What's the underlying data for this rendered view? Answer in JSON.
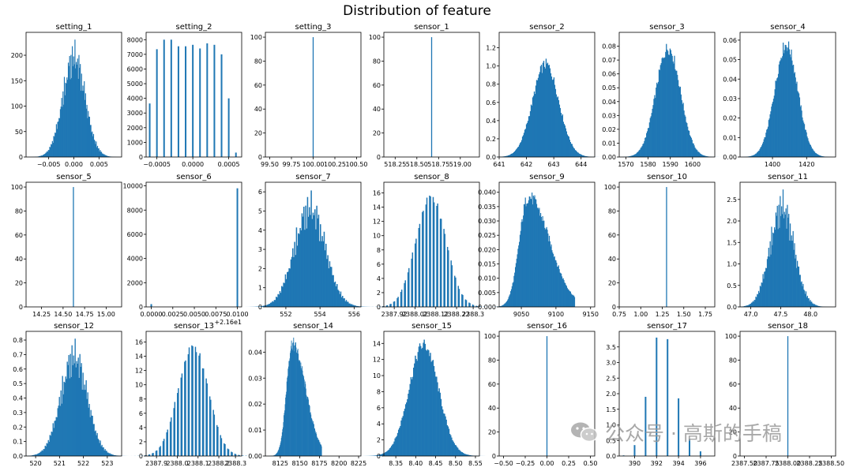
{
  "figure": {
    "title": "Distribution of feature"
  },
  "watermark": {
    "text": "公众号 · 高斯的手稿"
  },
  "colors": {
    "bar": "#1f77b4",
    "axis": "#000000"
  },
  "chart_data": [
    {
      "name": "setting_1",
      "type": "hist",
      "shape": "spiky-normal",
      "center": 0.0,
      "sd": 0.0022,
      "xlim": [
        -0.0095,
        0.0095
      ],
      "ylim": [
        0,
        245
      ],
      "xticks": [
        -0.005,
        0.0,
        0.005
      ],
      "xtick_labels": [
        "−0.005",
        "0.000",
        "0.005"
      ],
      "yticks": [
        0,
        50,
        100,
        150,
        200
      ],
      "peak": 228
    },
    {
      "name": "setting_2",
      "type": "hist",
      "shape": "discrete",
      "xlim": [
        -0.00065,
        0.00068
      ],
      "ylim": [
        0,
        8500
      ],
      "xticks": [
        -0.0005,
        0.0,
        0.0005
      ],
      "xtick_labels": [
        "−0.0005",
        "0.0000",
        "0.0005"
      ],
      "yticks": [
        0,
        1000,
        2000,
        3000,
        4000,
        5000,
        6000,
        7000,
        8000
      ],
      "bars": [
        [
          -0.0006,
          3650
        ],
        [
          -0.0005,
          7350
        ],
        [
          -0.0004,
          8000
        ],
        [
          -0.0003,
          8000
        ],
        [
          -0.0002,
          7550
        ],
        [
          -0.0001,
          7550
        ],
        [
          0.0,
          7650
        ],
        [
          0.0001,
          7400
        ],
        [
          0.0002,
          7750
        ],
        [
          0.0003,
          7650
        ],
        [
          0.0004,
          7000
        ],
        [
          0.0005,
          4000
        ],
        [
          0.0006,
          300
        ]
      ]
    },
    {
      "name": "setting_3",
      "type": "hist",
      "shape": "single",
      "xlim": [
        99.45,
        100.55
      ],
      "ylim": [
        0,
        104
      ],
      "xticks": [
        99.5,
        99.75,
        100.0,
        100.25,
        100.5
      ],
      "xtick_labels": [
        "99.50",
        "99.75",
        "100.00",
        "100.25",
        "100.50"
      ],
      "yticks": [
        0,
        20,
        40,
        60,
        80,
        100
      ],
      "bars": [
        [
          100.0,
          100
        ]
      ]
    },
    {
      "name": "sensor_1",
      "type": "hist",
      "shape": "single",
      "xlim": [
        518.12,
        519.22
      ],
      "ylim": [
        0,
        104
      ],
      "xticks": [
        518.25,
        518.5,
        518.75,
        519.0
      ],
      "xtick_labels": [
        "518.25",
        "518.50",
        "518.75",
        "519.00"
      ],
      "yticks": [
        0,
        20,
        40,
        60,
        80,
        100
      ],
      "bars": [
        [
          518.67,
          100
        ]
      ]
    },
    {
      "name": "sensor_2",
      "type": "hist",
      "shape": "normal",
      "center": 642.7,
      "sd": 0.48,
      "xlim": [
        641.0,
        644.5
      ],
      "ylim": [
        0,
        1.37
      ],
      "xticks": [
        641,
        642,
        643,
        644
      ],
      "xtick_labels": [
        "641",
        "642",
        "643",
        "644"
      ],
      "yticks": [
        0,
        0.2,
        0.4,
        0.6,
        0.8,
        1.0,
        1.2
      ],
      "ytick_labels": [
        "0.0",
        "0.2",
        "0.4",
        "0.6",
        "0.8",
        "1.0",
        "1.2"
      ],
      "peak": 1.06
    },
    {
      "name": "sensor_3",
      "type": "hist",
      "shape": "normal",
      "center": 1589.0,
      "sd": 5.5,
      "xlim": [
        1567,
        1610
      ],
      "ylim": [
        0,
        0.09
      ],
      "xticks": [
        1570,
        1580,
        1590,
        1600
      ],
      "xtick_labels": [
        "1570",
        "1580",
        "1590",
        "1600"
      ],
      "yticks": [
        0,
        0.01,
        0.02,
        0.03,
        0.04,
        0.05,
        0.06,
        0.07,
        0.08
      ],
      "ytick_labels": [
        "0.00",
        "0.01",
        "0.02",
        "0.03",
        "0.04",
        "0.05",
        "0.06",
        "0.07",
        "0.08"
      ],
      "peak": 0.082
    },
    {
      "name": "sensor_4",
      "type": "hist",
      "shape": "normal",
      "center": 1408.0,
      "sd": 6.7,
      "xlim": [
        1381,
        1437
      ],
      "ylim": [
        0,
        0.064
      ],
      "xticks": [
        1400,
        1420
      ],
      "xtick_labels": [
        "1400",
        "1420"
      ],
      "yticks": [
        0,
        0.01,
        0.02,
        0.03,
        0.04,
        0.05,
        0.06
      ],
      "ytick_labels": [
        "0.00",
        "0.01",
        "0.02",
        "0.03",
        "0.04",
        "0.05",
        "0.06"
      ],
      "peak": 0.06
    },
    {
      "name": "sensor_5",
      "type": "hist",
      "shape": "single",
      "xlim": [
        14.07,
        15.18
      ],
      "ylim": [
        0,
        104
      ],
      "xticks": [
        14.25,
        14.5,
        14.75,
        15.0
      ],
      "xtick_labels": [
        "14.25",
        "14.50",
        "14.75",
        "15.00"
      ],
      "yticks": [
        0,
        20,
        40,
        60,
        80,
        100
      ],
      "bars": [
        [
          14.62,
          100
        ]
      ]
    },
    {
      "name": "sensor_6",
      "type": "hist",
      "shape": "discrete",
      "xlim": [
        -0.0006,
        0.0105
      ],
      "ylim": [
        0,
        10300
      ],
      "xticks": [
        0.0,
        0.0025,
        0.005,
        0.0075,
        0.01
      ],
      "xtick_labels": [
        "0.0000",
        "0.0025",
        "0.0050",
        "0.0075",
        "0.0100"
      ],
      "offset_label": "+2.16e1",
      "yticks": [
        0,
        2000,
        4000,
        6000,
        8000,
        10000
      ],
      "bars": [
        [
          0.0,
          230
        ],
        [
          0.01,
          9800
        ]
      ]
    },
    {
      "name": "sensor_7",
      "type": "hist",
      "shape": "spiky-normal",
      "center": 553.4,
      "sd": 0.9,
      "xlim": [
        550.8,
        556.4
      ],
      "ylim": [
        0,
        6.5
      ],
      "xticks": [
        552,
        554,
        556
      ],
      "xtick_labels": [
        "552",
        "554",
        "556"
      ],
      "yticks": [
        0,
        1,
        2,
        3,
        4,
        5,
        6
      ],
      "peak": 6.0
    },
    {
      "name": "sensor_8",
      "type": "hist",
      "shape": "comb",
      "center": 2388.096,
      "sd": 0.072,
      "xlim": [
        2387.87,
        2388.33
      ],
      "ylim": [
        0,
        17.5
      ],
      "xticks": [
        2387.92,
        2388.02,
        2388.12,
        2388.22,
        2388.3
      ],
      "xtick_labels": [
        "2387.92",
        "2388.02",
        "2388.12",
        "2388.22",
        "2388.3"
      ],
      "yticks": [
        0,
        2,
        4,
        6,
        8,
        10,
        12,
        14,
        16
      ],
      "peak": 16.3
    },
    {
      "name": "sensor_9",
      "type": "hist",
      "shape": "skew",
      "center": 9060,
      "sd": 16,
      "xlim": [
        9018,
        9156
      ],
      "ylim": [
        0,
        0.0435
      ],
      "xticks": [
        9050,
        9100,
        9150
      ],
      "xtick_labels": [
        "9050",
        "9100",
        "9150"
      ],
      "yticks": [
        0,
        0.005,
        0.01,
        0.015,
        0.02,
        0.025,
        0.03,
        0.035,
        0.04
      ],
      "ytick_labels": [
        "0.000",
        "0.005",
        "0.010",
        "0.015",
        "0.020",
        "0.025",
        "0.030",
        "0.035",
        "0.040"
      ],
      "peak": 0.04
    },
    {
      "name": "sensor_10",
      "type": "hist",
      "shape": "single",
      "xlim": [
        0.75,
        1.86
      ],
      "ylim": [
        0,
        104
      ],
      "xticks": [
        0.75,
        1.0,
        1.25,
        1.5,
        1.75
      ],
      "xtick_labels": [
        "0.75",
        "1.00",
        "1.25",
        "1.50",
        "1.75"
      ],
      "yticks": [
        0,
        20,
        40,
        60,
        80,
        100
      ],
      "bars": [
        [
          1.3,
          100
        ]
      ]
    },
    {
      "name": "sensor_11",
      "type": "hist",
      "shape": "spiky-normal",
      "center": 47.52,
      "sd": 0.2,
      "xlim": [
        46.82,
        48.42
      ],
      "ylim": [
        0,
        2.9
      ],
      "xticks": [
        47.0,
        47.5,
        48.0
      ],
      "xtick_labels": [
        "47.0",
        "47.5",
        "48.0"
      ],
      "yticks": [
        0,
        0.5,
        1.0,
        1.5,
        2.0,
        2.5
      ],
      "ytick_labels": [
        "0.0",
        "0.5",
        "1.0",
        "1.5",
        "2.0",
        "2.5"
      ],
      "peak": 2.7
    },
    {
      "name": "sensor_12",
      "type": "hist",
      "shape": "spiky-normal",
      "center": 521.6,
      "sd": 0.55,
      "xlim": [
        519.6,
        523.6
      ],
      "ylim": [
        0,
        0.86
      ],
      "xticks": [
        520,
        521,
        522,
        523
      ],
      "xtick_labels": [
        "520",
        "521",
        "522",
        "523"
      ],
      "yticks": [
        0,
        0.1,
        0.2,
        0.3,
        0.4,
        0.5,
        0.6,
        0.7,
        0.8
      ],
      "ytick_labels": [
        "0.0",
        "0.1",
        "0.2",
        "0.3",
        "0.4",
        "0.5",
        "0.6",
        "0.7",
        "0.8"
      ],
      "peak": 0.8
    },
    {
      "name": "sensor_13",
      "type": "hist",
      "shape": "comb",
      "center": 2388.096,
      "sd": 0.072,
      "xlim": [
        2387.87,
        2388.33
      ],
      "ylim": [
        0,
        17.5
      ],
      "xticks": [
        2387.92,
        2388.02,
        2388.12,
        2388.22,
        2388.3
      ],
      "xtick_labels": [
        "2387.9",
        "2388.0",
        "2388.1",
        "2388.2",
        "2388.3"
      ],
      "yticks": [
        0,
        2,
        4,
        6,
        8,
        10,
        12,
        14,
        16
      ],
      "peak": 16.2
    },
    {
      "name": "sensor_14",
      "type": "hist",
      "shape": "skew",
      "center": 8140,
      "sd": 9,
      "xlim": [
        8106,
        8228
      ],
      "ylim": [
        0,
        0.048
      ],
      "xticks": [
        8125,
        8150,
        8175,
        8200,
        8225
      ],
      "xtick_labels": [
        "8125",
        "8150",
        "8175",
        "8200",
        "8225"
      ],
      "yticks": [
        0,
        0.01,
        0.02,
        0.03,
        0.04
      ],
      "ytick_labels": [
        "0.00",
        "0.01",
        "0.02",
        "0.03",
        "0.04"
      ],
      "peak": 0.045
    },
    {
      "name": "sensor_15",
      "type": "hist",
      "shape": "normal",
      "center": 8.42,
      "sd": 0.037,
      "xlim": [
        8.32,
        8.56
      ],
      "ylim": [
        0,
        15.5
      ],
      "xticks": [
        8.35,
        8.4,
        8.45,
        8.5,
        8.55
      ],
      "xtick_labels": [
        "8.35",
        "8.40",
        "8.45",
        "8.50",
        "8.55"
      ],
      "yticks": [
        0,
        2,
        4,
        6,
        8,
        10,
        12,
        14
      ],
      "peak": 14.4
    },
    {
      "name": "sensor_16",
      "type": "hist",
      "shape": "single",
      "xlim": [
        -0.55,
        0.55
      ],
      "ylim": [
        0,
        104
      ],
      "xticks": [
        -0.5,
        -0.25,
        0.0,
        0.25,
        0.5
      ],
      "xtick_labels": [
        "−0.50",
        "−0.25",
        "0.00",
        "0.25",
        "0.50"
      ],
      "yticks": [
        0,
        20,
        40,
        60,
        80,
        100
      ],
      "bars": [
        [
          0.0,
          100
        ]
      ]
    },
    {
      "name": "sensor_17",
      "type": "hist",
      "shape": "discrete",
      "xlim": [
        388.6,
        397.3
      ],
      "ylim": [
        0,
        4.0
      ],
      "xticks": [
        390,
        392,
        394,
        396
      ],
      "xtick_labels": [
        "390",
        "392",
        "394",
        "396"
      ],
      "yticks": [
        0,
        0.5,
        1.0,
        1.5,
        2.0,
        2.5,
        3.0,
        3.5
      ],
      "ytick_labels": [
        "0.0",
        "0.5",
        "1.0",
        "1.5",
        "2.0",
        "2.5",
        "3.0",
        "3.5"
      ],
      "bars": [
        [
          389,
          0.02
        ],
        [
          390,
          0.35
        ],
        [
          391,
          1.9
        ],
        [
          392,
          3.8
        ],
        [
          393,
          3.75
        ],
        [
          394,
          1.85
        ],
        [
          395,
          0.55
        ],
        [
          396,
          0.15
        ]
      ]
    },
    {
      "name": "sensor_18",
      "type": "hist",
      "shape": "single",
      "xlim": [
        2387.45,
        2388.55
      ],
      "ylim": [
        0,
        104
      ],
      "xticks": [
        2387.5,
        2387.75,
        2388.0,
        2388.25,
        2388.5
      ],
      "xtick_labels": [
        "2387.50",
        "2387.75",
        "2388.00",
        "2388.25",
        "2388.50"
      ],
      "yticks": [
        0,
        20,
        40,
        60,
        80,
        100
      ],
      "bars": [
        [
          2388.0,
          100
        ]
      ]
    }
  ]
}
